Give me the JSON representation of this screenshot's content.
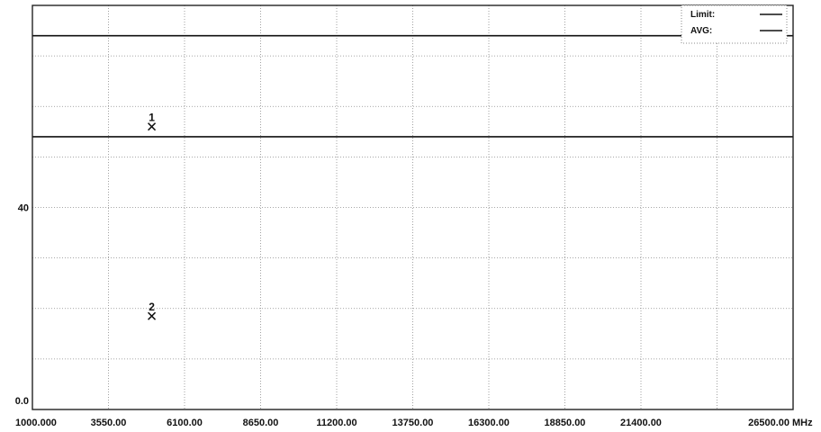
{
  "chart_data": {
    "type": "line",
    "x_unit": "MHz",
    "x_ticks": [
      "1000.000",
      "3550.00",
      "6100.00",
      "8650.00",
      "11200.00",
      "13750.00",
      "16300.00",
      "18850.00",
      "21400.00",
      "26500.00"
    ],
    "y_tick_labels": [
      {
        "value": 40,
        "label": "40"
      },
      {
        "value": 0,
        "label": "0.0"
      }
    ],
    "xlim": [
      1000,
      26500
    ],
    "ylim": [
      0,
      80
    ],
    "grid": true,
    "legend_position": "top-right",
    "series": [
      {
        "name": "Limit:",
        "style": "solid",
        "color": "#111111",
        "y": 74
      },
      {
        "name": "AVG:",
        "style": "solid",
        "color": "#111111",
        "y": 54
      }
    ],
    "markers": [
      {
        "label": "1",
        "x": 5000,
        "y": 56
      },
      {
        "label": "2",
        "x": 5000,
        "y": 18.5
      }
    ]
  }
}
